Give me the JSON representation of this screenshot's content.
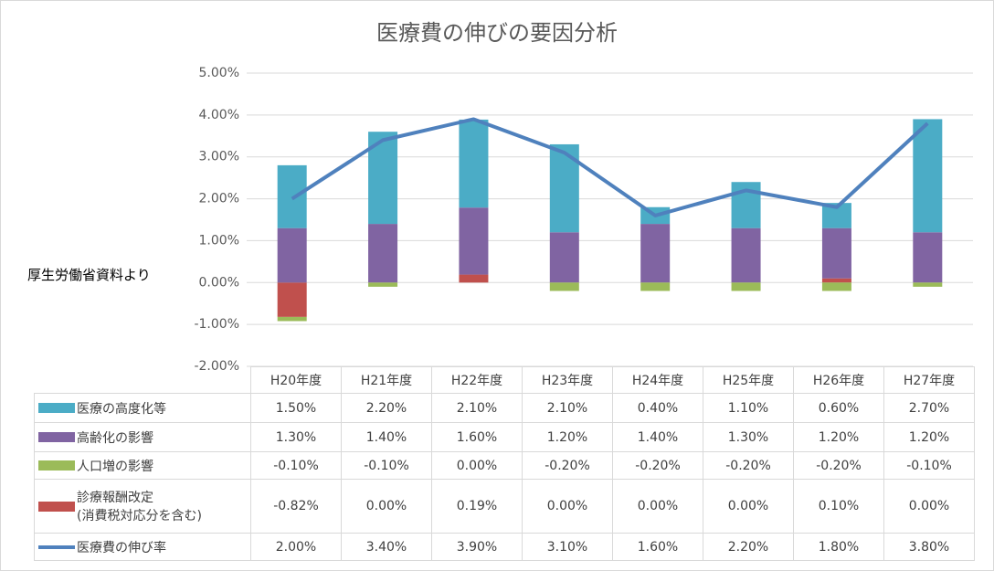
{
  "chart_data": {
    "type": "bar",
    "title": "医療費の伸びの要因分析",
    "annotation": "厚生労働省資料より",
    "categories": [
      "H20年度",
      "H21年度",
      "H22年度",
      "H23年度",
      "H24年度",
      "H25年度",
      "H26年度",
      "H27年度"
    ],
    "series": [
      {
        "name": "医療の高度化等",
        "color": "#4bacc6",
        "values": [
          1.5,
          2.2,
          2.1,
          2.1,
          0.4,
          1.1,
          0.6,
          2.7
        ],
        "value_labels": [
          "1.50%",
          "2.20%",
          "2.10%",
          "2.10%",
          "0.40%",
          "1.10%",
          "0.60%",
          "2.70%"
        ]
      },
      {
        "name": "高齢化の影響",
        "color": "#8064a2",
        "values": [
          1.3,
          1.4,
          1.6,
          1.2,
          1.4,
          1.3,
          1.2,
          1.2
        ],
        "value_labels": [
          "1.30%",
          "1.40%",
          "1.60%",
          "1.20%",
          "1.40%",
          "1.30%",
          "1.20%",
          "1.20%"
        ]
      },
      {
        "name": "人口増の影響",
        "color": "#9bbb59",
        "values": [
          -0.1,
          -0.1,
          0,
          -0.2,
          -0.2,
          -0.2,
          -0.2,
          -0.1
        ],
        "value_labels": [
          "-0.10%",
          "-0.10%",
          "0.00%",
          "-0.20%",
          "-0.20%",
          "-0.20%",
          "-0.20%",
          "-0.10%"
        ]
      },
      {
        "name": "診療報酬改定\n(消費税対応分を含む)",
        "color": "#c0504d",
        "values": [
          -0.82,
          0,
          0.19,
          0,
          0,
          0,
          0.1,
          0
        ],
        "value_labels": [
          "-0.82%",
          "0.00%",
          "0.19%",
          "0.00%",
          "0.00%",
          "0.00%",
          "0.10%",
          "0.00%"
        ]
      },
      {
        "name": "医療費の伸び率",
        "color": "#4f81bd",
        "type": "line",
        "values": [
          2.0,
          3.4,
          3.9,
          3.1,
          1.6,
          2.2,
          1.8,
          3.8
        ],
        "value_labels": [
          "2.00%",
          "3.40%",
          "3.90%",
          "3.10%",
          "1.60%",
          "2.20%",
          "1.80%",
          "3.80%"
        ]
      }
    ],
    "ylim": [
      -2,
      5
    ],
    "yticks": [
      {
        "value": -2,
        "label": "-2.00%"
      },
      {
        "value": -1,
        "label": "-1.00%"
      },
      {
        "value": 0,
        "label": "0.00%"
      },
      {
        "value": 1,
        "label": "1.00%"
      },
      {
        "value": 2,
        "label": "2.00%"
      },
      {
        "value": 3,
        "label": "3.00%"
      },
      {
        "value": 4,
        "label": "4.00%"
      },
      {
        "value": 5,
        "label": "5.00%"
      }
    ],
    "grid": true
  }
}
